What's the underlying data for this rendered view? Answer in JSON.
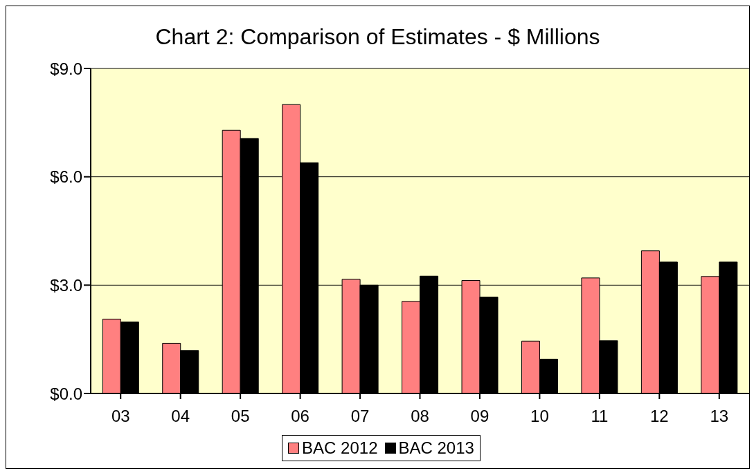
{
  "chart_data": {
    "type": "bar",
    "title": "Chart 2: Comparison of Estimates - $ Millions",
    "categories": [
      "03",
      "04",
      "05",
      "06",
      "07",
      "08",
      "09",
      "10",
      "11",
      "12",
      "13"
    ],
    "series": [
      {
        "name": "BAC 2012",
        "color": "#ff8080",
        "values": [
          2.06,
          1.39,
          7.29,
          8.0,
          3.16,
          2.55,
          3.13,
          1.45,
          3.2,
          3.95,
          3.24
        ]
      },
      {
        "name": "BAC 2013",
        "color": "#000000",
        "values": [
          1.98,
          1.19,
          7.06,
          6.39,
          3.0,
          3.25,
          2.67,
          0.95,
          1.46,
          3.64,
          3.64
        ]
      }
    ],
    "ylim": [
      0,
      9
    ],
    "yticks": [
      {
        "value": 0,
        "label": "$0.0"
      },
      {
        "value": 3,
        "label": "$3.0"
      },
      {
        "value": 6,
        "label": "$6.0"
      },
      {
        "value": 9,
        "label": "$9.0"
      }
    ],
    "grid": "y",
    "legend": "bottom"
  }
}
